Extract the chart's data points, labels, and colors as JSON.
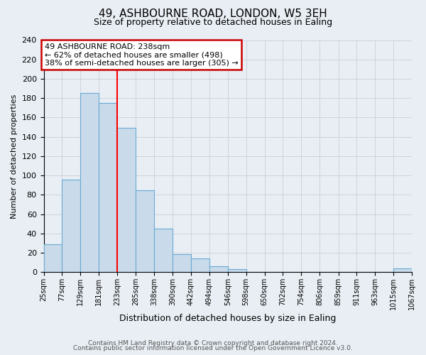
{
  "title": "49, ASHBOURNE ROAD, LONDON, W5 3EH",
  "subtitle": "Size of property relative to detached houses in Ealing",
  "xlabel": "Distribution of detached houses by size in Ealing",
  "ylabel": "Number of detached properties",
  "footer_line1": "Contains HM Land Registry data © Crown copyright and database right 2024.",
  "footer_line2": "Contains public sector information licensed under the Open Government Licence v3.0.",
  "annotation_title": "49 ASHBOURNE ROAD: 238sqm",
  "annotation_line1": "← 62% of detached houses are smaller (498)",
  "annotation_line2": "38% of semi-detached houses are larger (305) →",
  "bar_edges": [
    25,
    77,
    129,
    181,
    233,
    285,
    338,
    390,
    442,
    494,
    546,
    598,
    650,
    702,
    754,
    806,
    859,
    911,
    963,
    1015,
    1067
  ],
  "bar_heights": [
    29,
    96,
    185,
    175,
    149,
    85,
    45,
    19,
    14,
    6,
    3,
    0,
    0,
    0,
    0,
    0,
    0,
    0,
    0,
    4
  ],
  "tick_labels": [
    "25sqm",
    "77sqm",
    "129sqm",
    "181sqm",
    "233sqm",
    "285sqm",
    "338sqm",
    "390sqm",
    "442sqm",
    "494sqm",
    "546sqm",
    "598sqm",
    "650sqm",
    "702sqm",
    "754sqm",
    "806sqm",
    "859sqm",
    "911sqm",
    "963sqm",
    "1015sqm",
    "1067sqm"
  ],
  "bar_color": "#c9daea",
  "bar_edge_color": "#6aaad4",
  "red_line_x": 233,
  "ylim": [
    0,
    240
  ],
  "yticks": [
    0,
    20,
    40,
    60,
    80,
    100,
    120,
    140,
    160,
    180,
    200,
    220,
    240
  ],
  "grid_color": "#c8d0d8",
  "background_color": "#e8eef4",
  "plot_bg_color": "#e8eef4",
  "annotation_box_color": "#ffffff",
  "annotation_box_edge": "#cc0000",
  "title_fontsize": 11,
  "subtitle_fontsize": 9,
  "xlabel_fontsize": 9,
  "ylabel_fontsize": 8,
  "annotation_fontsize": 8,
  "footer_fontsize": 6.5,
  "footer_color": "#555555"
}
